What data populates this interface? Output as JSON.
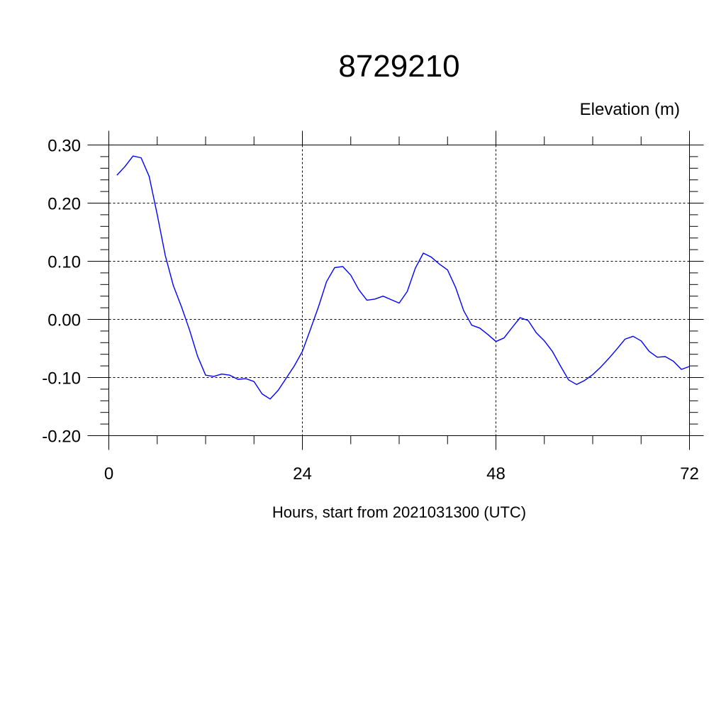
{
  "chart_data": {
    "type": "line",
    "title": "8729210",
    "ylabel": "Elevation (m)",
    "xlabel": "Hours, start from 2021031300 (UTC)",
    "xlim": [
      0,
      72
    ],
    "ylim": [
      -0.2,
      0.3
    ],
    "x_ticks": [
      0,
      24,
      48,
      72
    ],
    "x_tick_labels": [
      "0",
      "24",
      "48",
      "72"
    ],
    "y_ticks": [
      0.3,
      0.2,
      0.1,
      0.0,
      -0.1,
      -0.2
    ],
    "y_tick_labels": [
      "0.30",
      "0.20",
      "0.10",
      "0.00",
      "-0.10",
      "-0.20"
    ],
    "grid": true,
    "line_color": "#0000ff",
    "series": [
      {
        "x": [
          1,
          2,
          3,
          4,
          5,
          6,
          7,
          8,
          9,
          10,
          11,
          12,
          13,
          14,
          15,
          16,
          17,
          18,
          19,
          20,
          21,
          22,
          23,
          24,
          25,
          26,
          27,
          28,
          29,
          30,
          31,
          32,
          33,
          34,
          35,
          36,
          37,
          38,
          39,
          40,
          41,
          42,
          43,
          44,
          45,
          46,
          47,
          48,
          49,
          50,
          51,
          52,
          53,
          54,
          55,
          56,
          57,
          58,
          59,
          60,
          61,
          62,
          63,
          64,
          65,
          66,
          67,
          68,
          69,
          70,
          71,
          72
        ],
        "values": [
          0.248,
          0.263,
          0.281,
          0.278,
          0.246,
          0.18,
          0.11,
          0.058,
          0.022,
          -0.018,
          -0.063,
          -0.096,
          -0.098,
          -0.094,
          -0.096,
          -0.103,
          -0.102,
          -0.107,
          -0.128,
          -0.137,
          -0.122,
          -0.101,
          -0.08,
          -0.055,
          -0.017,
          0.022,
          0.065,
          0.089,
          0.091,
          0.076,
          0.051,
          0.033,
          0.035,
          0.04,
          0.034,
          0.028,
          0.048,
          0.088,
          0.114,
          0.107,
          0.095,
          0.085,
          0.055,
          0.015,
          -0.01,
          -0.015,
          -0.026,
          -0.038,
          -0.032,
          -0.014,
          0.003,
          -0.002,
          -0.023,
          -0.037,
          -0.055,
          -0.08,
          -0.104,
          -0.112,
          -0.105,
          -0.095,
          -0.082,
          -0.067,
          -0.051,
          -0.034,
          -0.029,
          -0.037,
          -0.055,
          -0.065,
          -0.064,
          -0.072,
          -0.086,
          -0.081
        ]
      }
    ]
  }
}
